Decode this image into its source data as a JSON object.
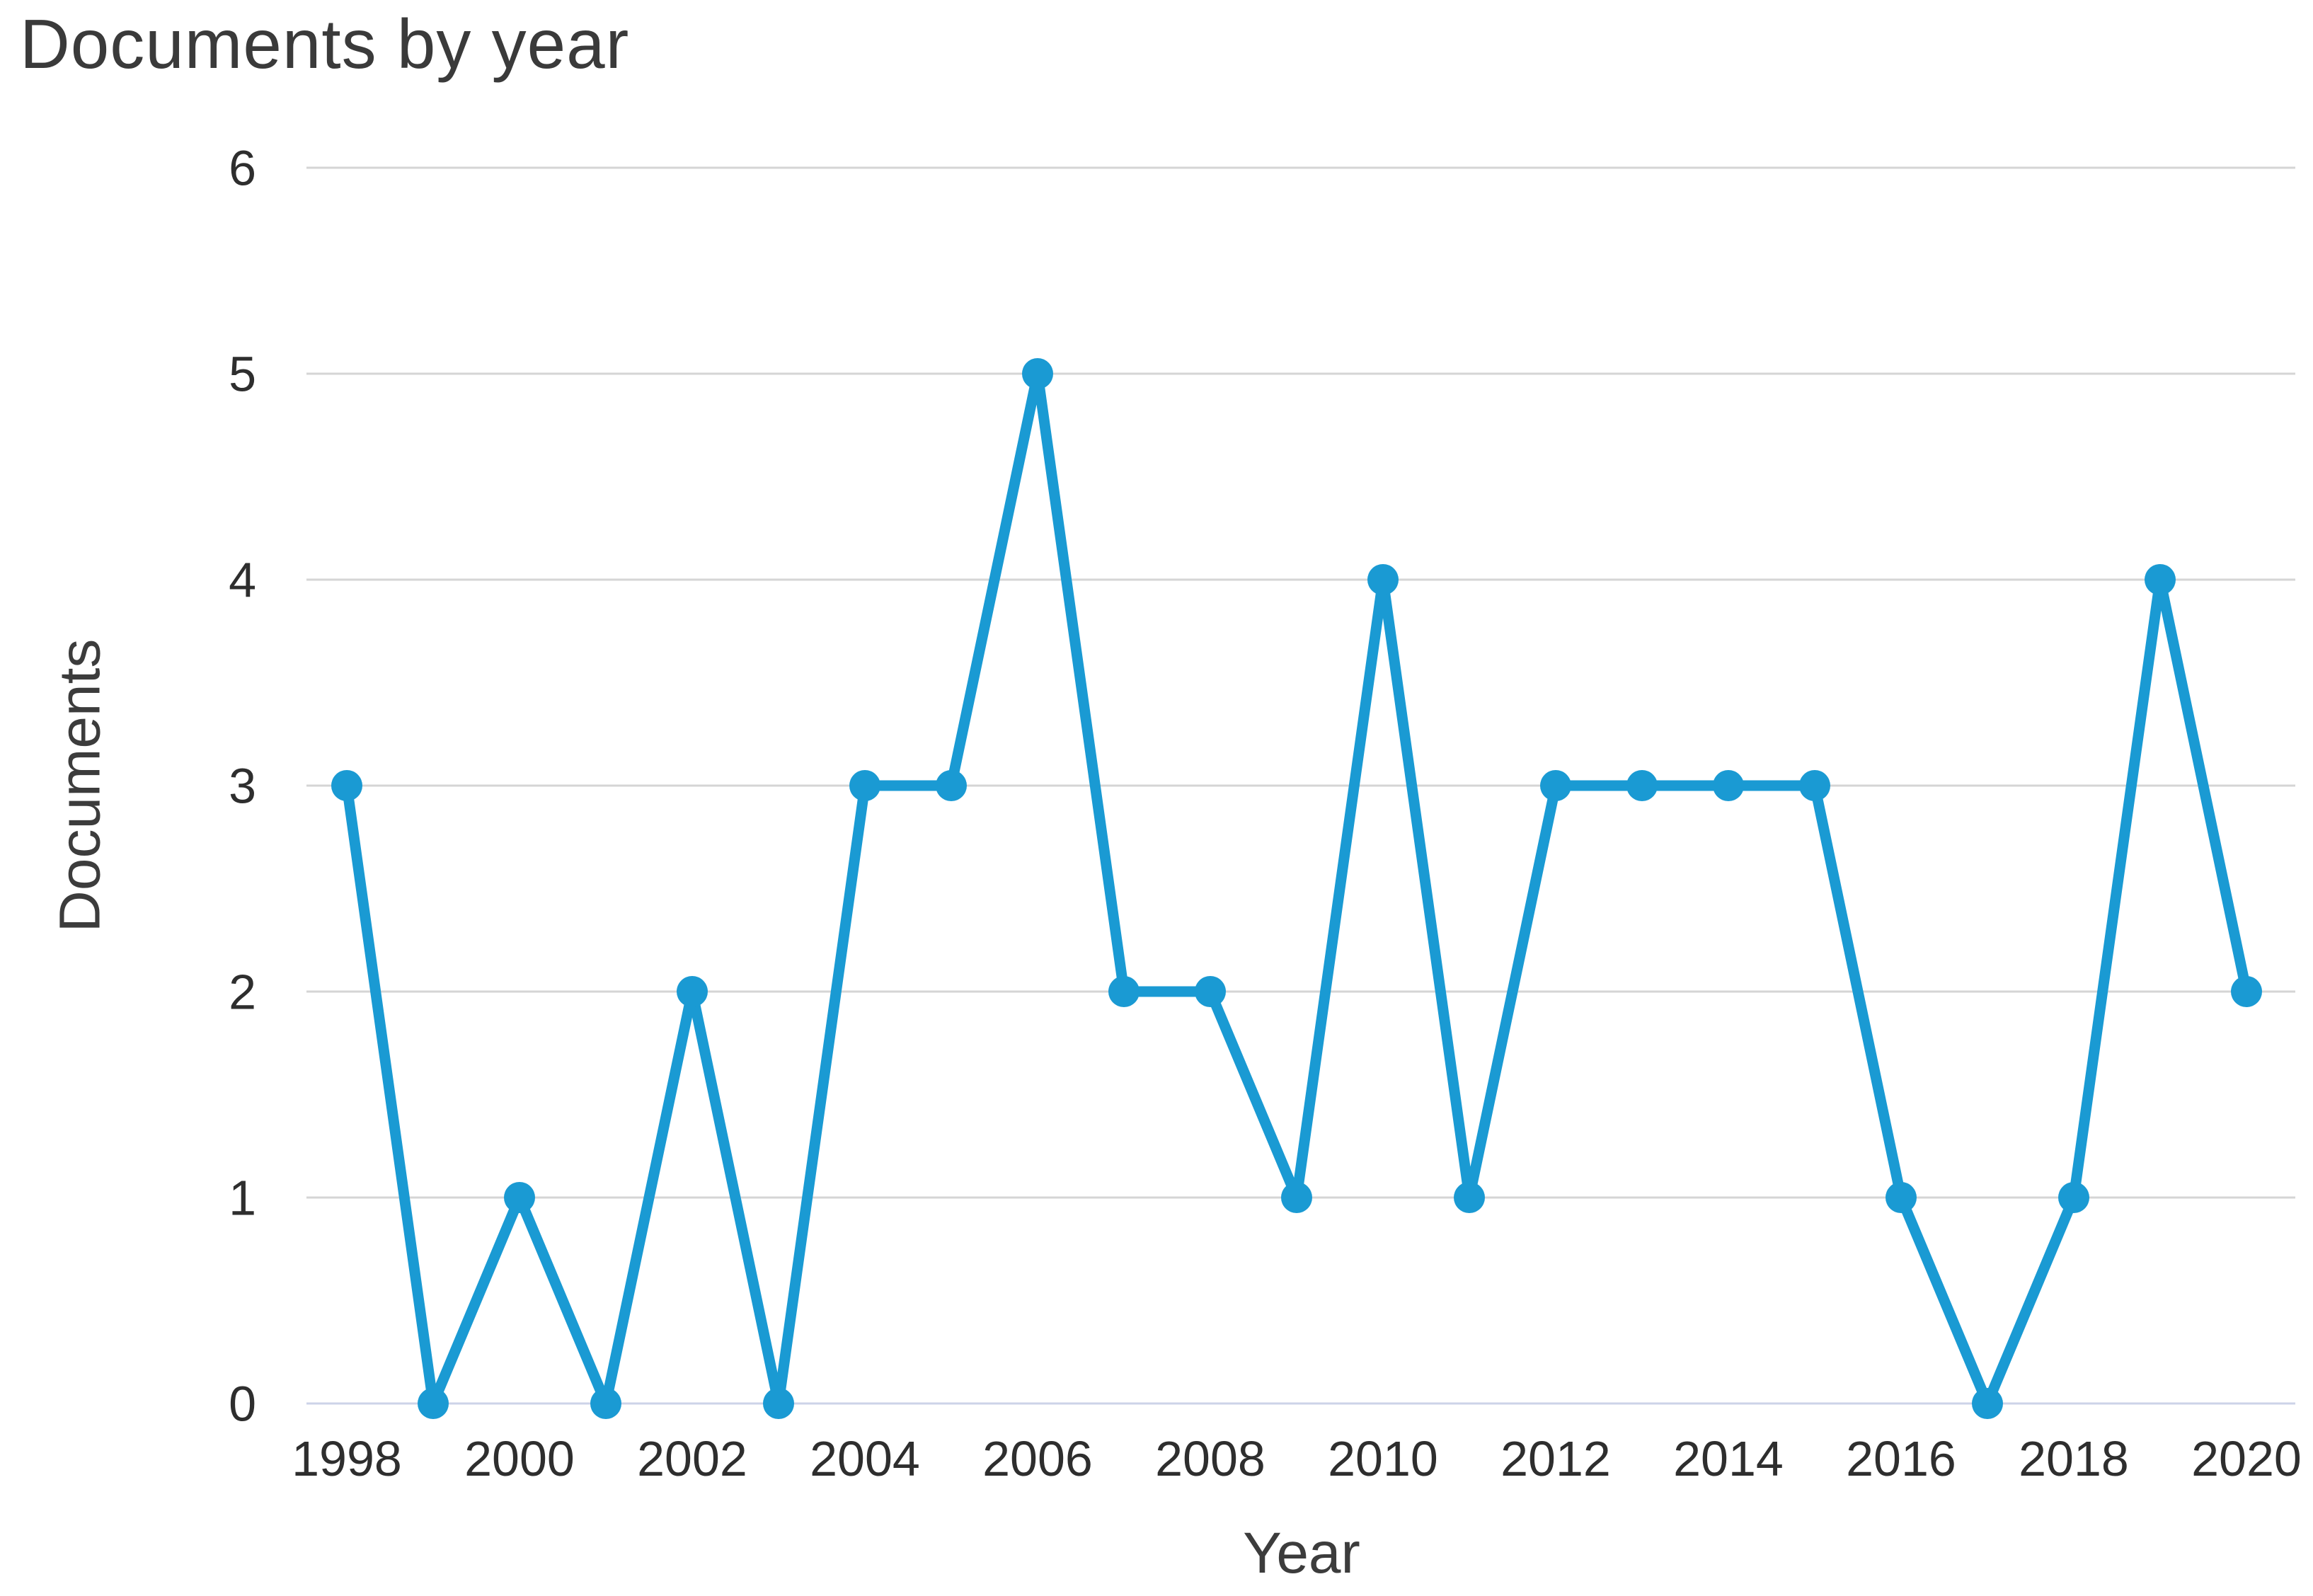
{
  "page": {
    "background": "#ffffff"
  },
  "chart_data": {
    "type": "line",
    "title": "Documents by year",
    "xlabel": "Year",
    "ylabel": "Documents",
    "series_name": "Documents",
    "x": [
      1998,
      1999,
      2000,
      2001,
      2002,
      2003,
      2004,
      2005,
      2006,
      2007,
      2008,
      2009,
      2010,
      2011,
      2012,
      2013,
      2014,
      2015,
      2016,
      2017,
      2018,
      2019,
      2020
    ],
    "values": [
      3,
      0,
      1,
      0,
      2,
      0,
      3,
      3,
      5,
      2,
      2,
      1,
      4,
      1,
      3,
      3,
      3,
      3,
      1,
      0,
      1,
      4,
      2
    ],
    "ylim": [
      0,
      6
    ],
    "yticks": [
      0,
      1,
      2,
      3,
      4,
      5,
      6
    ],
    "xticks": [
      1998,
      2000,
      2002,
      2004,
      2006,
      2008,
      2010,
      2012,
      2014,
      2016,
      2018,
      2020
    ],
    "grid": "horizontal",
    "legend": "none",
    "marker": "circle",
    "colors": {
      "line": "#1a9ad3",
      "marker": "#1a9ad3",
      "gridline": "#d5d5d5",
      "zero_gridline": "#ccd3e8",
      "title_text": "#3a3a3a",
      "axis_title_text": "#3c3c3c",
      "tick_text": "#2e2e2e"
    }
  }
}
